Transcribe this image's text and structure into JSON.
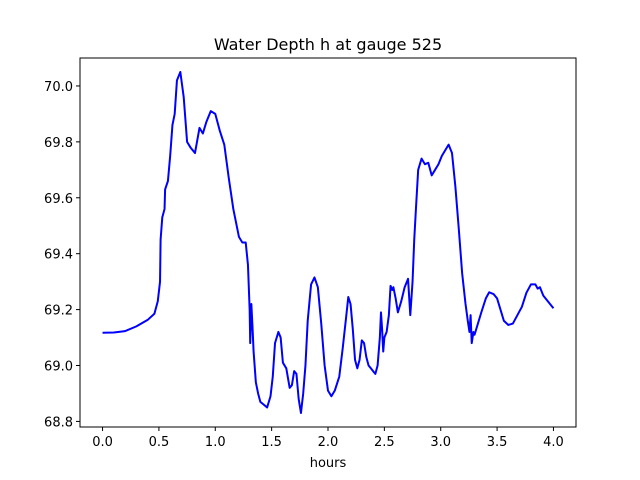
{
  "chart_data": {
    "type": "line",
    "title": "Water Depth h at gauge 525",
    "xlabel": "hours",
    "ylabel": "",
    "xlim": [
      -0.2,
      4.2
    ],
    "ylim": [
      68.78,
      70.1
    ],
    "x_ticks": [
      0.0,
      0.5,
      1.0,
      1.5,
      2.0,
      2.5,
      3.0,
      3.5,
      4.0
    ],
    "x_tick_labels": [
      "0.0",
      "0.5",
      "1.0",
      "1.5",
      "2.0",
      "2.5",
      "3.0",
      "3.5",
      "4.0"
    ],
    "y_ticks": [
      68.8,
      69.0,
      69.2,
      69.4,
      69.6,
      69.8,
      70.0
    ],
    "y_tick_labels": [
      "68.8",
      "69.0",
      "69.2",
      "69.4",
      "69.6",
      "69.8",
      "70.0"
    ],
    "grid": false,
    "legend": "none",
    "series": [
      {
        "color": "#0000ff",
        "points": [
          [
            0.0,
            69.117
          ],
          [
            0.1,
            69.118
          ],
          [
            0.2,
            69.123
          ],
          [
            0.3,
            69.14
          ],
          [
            0.4,
            69.163
          ],
          [
            0.46,
            69.185
          ],
          [
            0.49,
            69.23
          ],
          [
            0.51,
            69.3
          ],
          [
            0.515,
            69.45
          ],
          [
            0.53,
            69.53
          ],
          [
            0.55,
            69.56
          ],
          [
            0.555,
            69.63
          ],
          [
            0.58,
            69.66
          ],
          [
            0.6,
            69.75
          ],
          [
            0.62,
            69.86
          ],
          [
            0.64,
            69.9
          ],
          [
            0.66,
            70.02
          ],
          [
            0.69,
            70.05
          ],
          [
            0.72,
            69.96
          ],
          [
            0.75,
            69.8
          ],
          [
            0.78,
            69.78
          ],
          [
            0.82,
            69.76
          ],
          [
            0.86,
            69.85
          ],
          [
            0.89,
            69.83
          ],
          [
            0.92,
            69.87
          ],
          [
            0.96,
            69.91
          ],
          [
            1.0,
            69.9
          ],
          [
            1.04,
            69.84
          ],
          [
            1.08,
            69.79
          ],
          [
            1.12,
            69.67
          ],
          [
            1.16,
            69.56
          ],
          [
            1.21,
            69.46
          ],
          [
            1.24,
            69.44
          ],
          [
            1.27,
            69.44
          ],
          [
            1.29,
            69.36
          ],
          [
            1.305,
            69.2
          ],
          [
            1.31,
            69.08
          ],
          [
            1.32,
            69.22
          ],
          [
            1.33,
            69.14
          ],
          [
            1.34,
            69.05
          ],
          [
            1.36,
            68.94
          ],
          [
            1.38,
            68.9
          ],
          [
            1.4,
            68.87
          ],
          [
            1.43,
            68.86
          ],
          [
            1.46,
            68.85
          ],
          [
            1.49,
            68.89
          ],
          [
            1.51,
            68.96
          ],
          [
            1.53,
            69.08
          ],
          [
            1.56,
            69.12
          ],
          [
            1.58,
            69.1
          ],
          [
            1.6,
            69.01
          ],
          [
            1.63,
            68.99
          ],
          [
            1.66,
            68.92
          ],
          [
            1.68,
            68.93
          ],
          [
            1.7,
            68.98
          ],
          [
            1.72,
            68.97
          ],
          [
            1.74,
            68.88
          ],
          [
            1.76,
            68.83
          ],
          [
            1.78,
            68.9
          ],
          [
            1.8,
            69.0
          ],
          [
            1.82,
            69.16
          ],
          [
            1.85,
            69.29
          ],
          [
            1.88,
            69.315
          ],
          [
            1.91,
            69.28
          ],
          [
            1.94,
            69.15
          ],
          [
            1.97,
            69.0
          ],
          [
            2.0,
            68.91
          ],
          [
            2.03,
            68.89
          ],
          [
            2.06,
            68.91
          ],
          [
            2.1,
            68.96
          ],
          [
            2.13,
            69.06
          ],
          [
            2.16,
            69.17
          ],
          [
            2.18,
            69.245
          ],
          [
            2.2,
            69.22
          ],
          [
            2.22,
            69.13
          ],
          [
            2.24,
            69.02
          ],
          [
            2.26,
            68.99
          ],
          [
            2.28,
            69.02
          ],
          [
            2.3,
            69.09
          ],
          [
            2.32,
            69.08
          ],
          [
            2.34,
            69.03
          ],
          [
            2.36,
            69.0
          ],
          [
            2.38,
            68.99
          ],
          [
            2.4,
            68.98
          ],
          [
            2.42,
            68.97
          ],
          [
            2.44,
            69.0
          ],
          [
            2.46,
            69.1
          ],
          [
            2.47,
            69.19
          ],
          [
            2.48,
            69.13
          ],
          [
            2.49,
            69.05
          ],
          [
            2.5,
            69.1
          ],
          [
            2.52,
            69.12
          ],
          [
            2.54,
            69.18
          ],
          [
            2.555,
            69.285
          ],
          [
            2.57,
            69.27
          ],
          [
            2.58,
            69.28
          ],
          [
            2.6,
            69.24
          ],
          [
            2.62,
            69.19
          ],
          [
            2.65,
            69.23
          ],
          [
            2.68,
            69.28
          ],
          [
            2.71,
            69.31
          ],
          [
            2.73,
            69.18
          ],
          [
            2.75,
            69.3
          ],
          [
            2.765,
            69.45
          ],
          [
            2.78,
            69.56
          ],
          [
            2.8,
            69.7
          ],
          [
            2.83,
            69.74
          ],
          [
            2.86,
            69.72
          ],
          [
            2.89,
            69.725
          ],
          [
            2.92,
            69.68
          ],
          [
            2.95,
            69.7
          ],
          [
            2.98,
            69.72
          ],
          [
            3.01,
            69.75
          ],
          [
            3.04,
            69.77
          ],
          [
            3.07,
            69.79
          ],
          [
            3.1,
            69.76
          ],
          [
            3.13,
            69.64
          ],
          [
            3.16,
            69.49
          ],
          [
            3.19,
            69.33
          ],
          [
            3.22,
            69.22
          ],
          [
            3.24,
            69.16
          ],
          [
            3.255,
            69.12
          ],
          [
            3.265,
            69.18
          ],
          [
            3.275,
            69.08
          ],
          [
            3.29,
            69.12
          ],
          [
            3.3,
            69.11
          ],
          [
            3.33,
            69.15
          ],
          [
            3.36,
            69.19
          ],
          [
            3.4,
            69.24
          ],
          [
            3.43,
            69.262
          ],
          [
            3.47,
            69.255
          ],
          [
            3.5,
            69.24
          ],
          [
            3.53,
            69.2
          ],
          [
            3.56,
            69.16
          ],
          [
            3.6,
            69.145
          ],
          [
            3.64,
            69.15
          ],
          [
            3.68,
            69.18
          ],
          [
            3.72,
            69.21
          ],
          [
            3.76,
            69.26
          ],
          [
            3.8,
            69.29
          ],
          [
            3.84,
            69.29
          ],
          [
            3.86,
            69.275
          ],
          [
            3.88,
            69.28
          ],
          [
            3.91,
            69.25
          ],
          [
            3.95,
            69.23
          ],
          [
            4.0,
            69.205
          ]
        ]
      }
    ]
  }
}
